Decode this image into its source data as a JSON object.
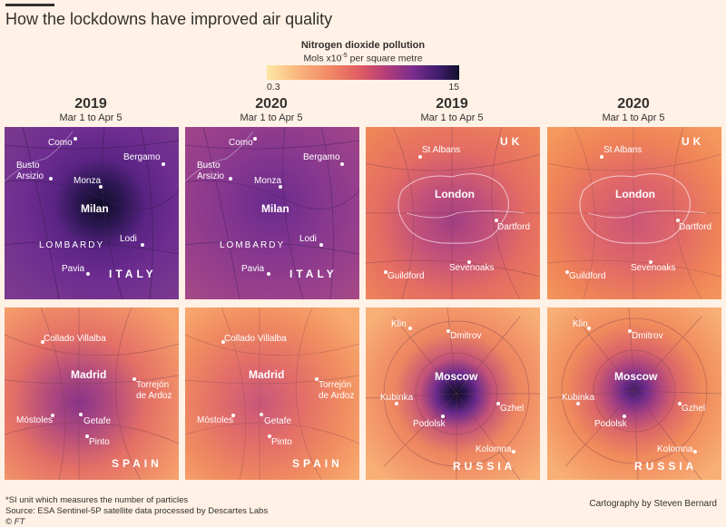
{
  "title": "How the lockdowns have improved air quality",
  "legend": {
    "title": "Nitrogen dioxide pollution",
    "subtitle_pre": "Mols x10",
    "subtitle_sup": "-5",
    "subtitle_post": " per square metre",
    "min": "0.3",
    "max": "15"
  },
  "columns": [
    {
      "year": "2019",
      "range": "Mar 1 to Apr 5"
    },
    {
      "year": "2020",
      "range": "Mar 1 to Apr 5"
    },
    {
      "year": "2019",
      "range": "Mar 1 to Apr 5"
    },
    {
      "year": "2020",
      "range": "Mar 1 to Apr 5"
    }
  ],
  "maps": {
    "milan": {
      "cities": {
        "como": "Como",
        "bergamo": "Bergamo",
        "busto": "Busto\nArsizio",
        "monza": "Monza",
        "milan": "Milan",
        "lodi": "Lodi",
        "pavia": "Pavia"
      },
      "region": "LOMBARDY",
      "country": "ITALY"
    },
    "london": {
      "cities": {
        "stalbans": "St Albans",
        "london": "London",
        "dartford": "Dartford",
        "sevenoaks": "Sevenoaks",
        "guildford": "Guildford"
      },
      "country": "UK"
    },
    "madrid": {
      "cities": {
        "collado": "Collado Villalba",
        "madrid": "Madrid",
        "torrejon": "Torrejón\nde Ardoz",
        "mostoles": "Móstoles",
        "getafe": "Getafe",
        "pinto": "Pinto"
      },
      "country": "SPAIN"
    },
    "moscow": {
      "cities": {
        "klin": "Klin",
        "dmitrov": "Dmitrov",
        "moscow": "Moscow",
        "kubinka": "Kubinka",
        "gzhel": "Gzhel",
        "podolsk": "Podolsk",
        "kolomna": "Kolomna"
      },
      "country": "RUSSIA"
    }
  },
  "colors": {
    "background": "#fff1e5",
    "low": "#fde7a4",
    "mid": "#e05d61",
    "high": "#12102b"
  },
  "footer": {
    "note": "*SI unit which measures the number of particles",
    "source": "Source: ESA Sentinel-5P satellite data processed by Descartes Labs",
    "copyright": "© FT",
    "credit": "Cartography by Steven Bernard"
  }
}
